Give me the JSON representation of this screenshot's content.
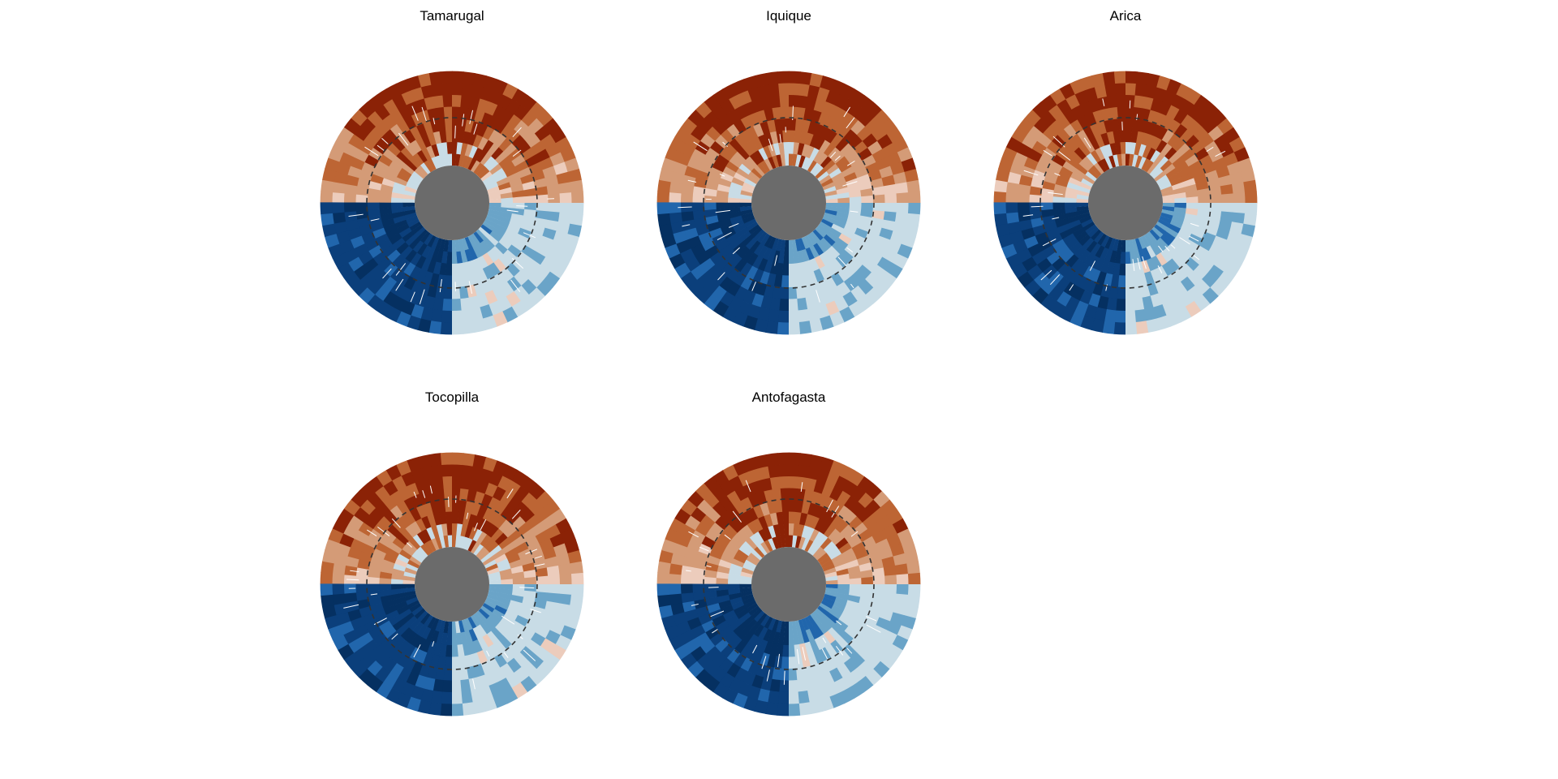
{
  "chart_data": [
    {
      "type": "heatmap",
      "title": "Tamarugal",
      "seed": 11,
      "palette": [
        "#053061",
        "#0b3f7b",
        "#2166ac",
        "#6aa4c8",
        "#c8dce6",
        "#ecccbc",
        "#d49b77",
        "#bd6534",
        "#8b2206"
      ],
      "rings": 8
    },
    {
      "type": "heatmap",
      "title": "Iquique",
      "seed": 23,
      "palette": [
        "#053061",
        "#0b3f7b",
        "#2166ac",
        "#6aa4c8",
        "#c8dce6",
        "#ecccbc",
        "#d49b77",
        "#bd6534",
        "#8b2206"
      ],
      "rings": 8
    },
    {
      "type": "heatmap",
      "title": "Arica",
      "seed": 37,
      "palette": [
        "#053061",
        "#0b3f7b",
        "#2166ac",
        "#6aa4c8",
        "#c8dce6",
        "#ecccbc",
        "#d49b77",
        "#bd6534",
        "#8b2206"
      ],
      "rings": 8
    },
    {
      "type": "heatmap",
      "title": "Tocopilla",
      "seed": 41,
      "palette": [
        "#053061",
        "#0b3f7b",
        "#2166ac",
        "#6aa4c8",
        "#c8dce6",
        "#ecccbc",
        "#d49b77",
        "#bd6534",
        "#8b2206"
      ],
      "rings": 8
    },
    {
      "type": "heatmap",
      "title": "Antofagasta",
      "seed": 53,
      "palette": [
        "#053061",
        "#0b3f7b",
        "#2166ac",
        "#6aa4c8",
        "#c8dce6",
        "#ecccbc",
        "#d49b77",
        "#bd6534",
        "#8b2206"
      ],
      "rings": 8
    }
  ],
  "colors": {
    "center_disk": "#6b6b6b",
    "reference_circle": "#333333"
  }
}
